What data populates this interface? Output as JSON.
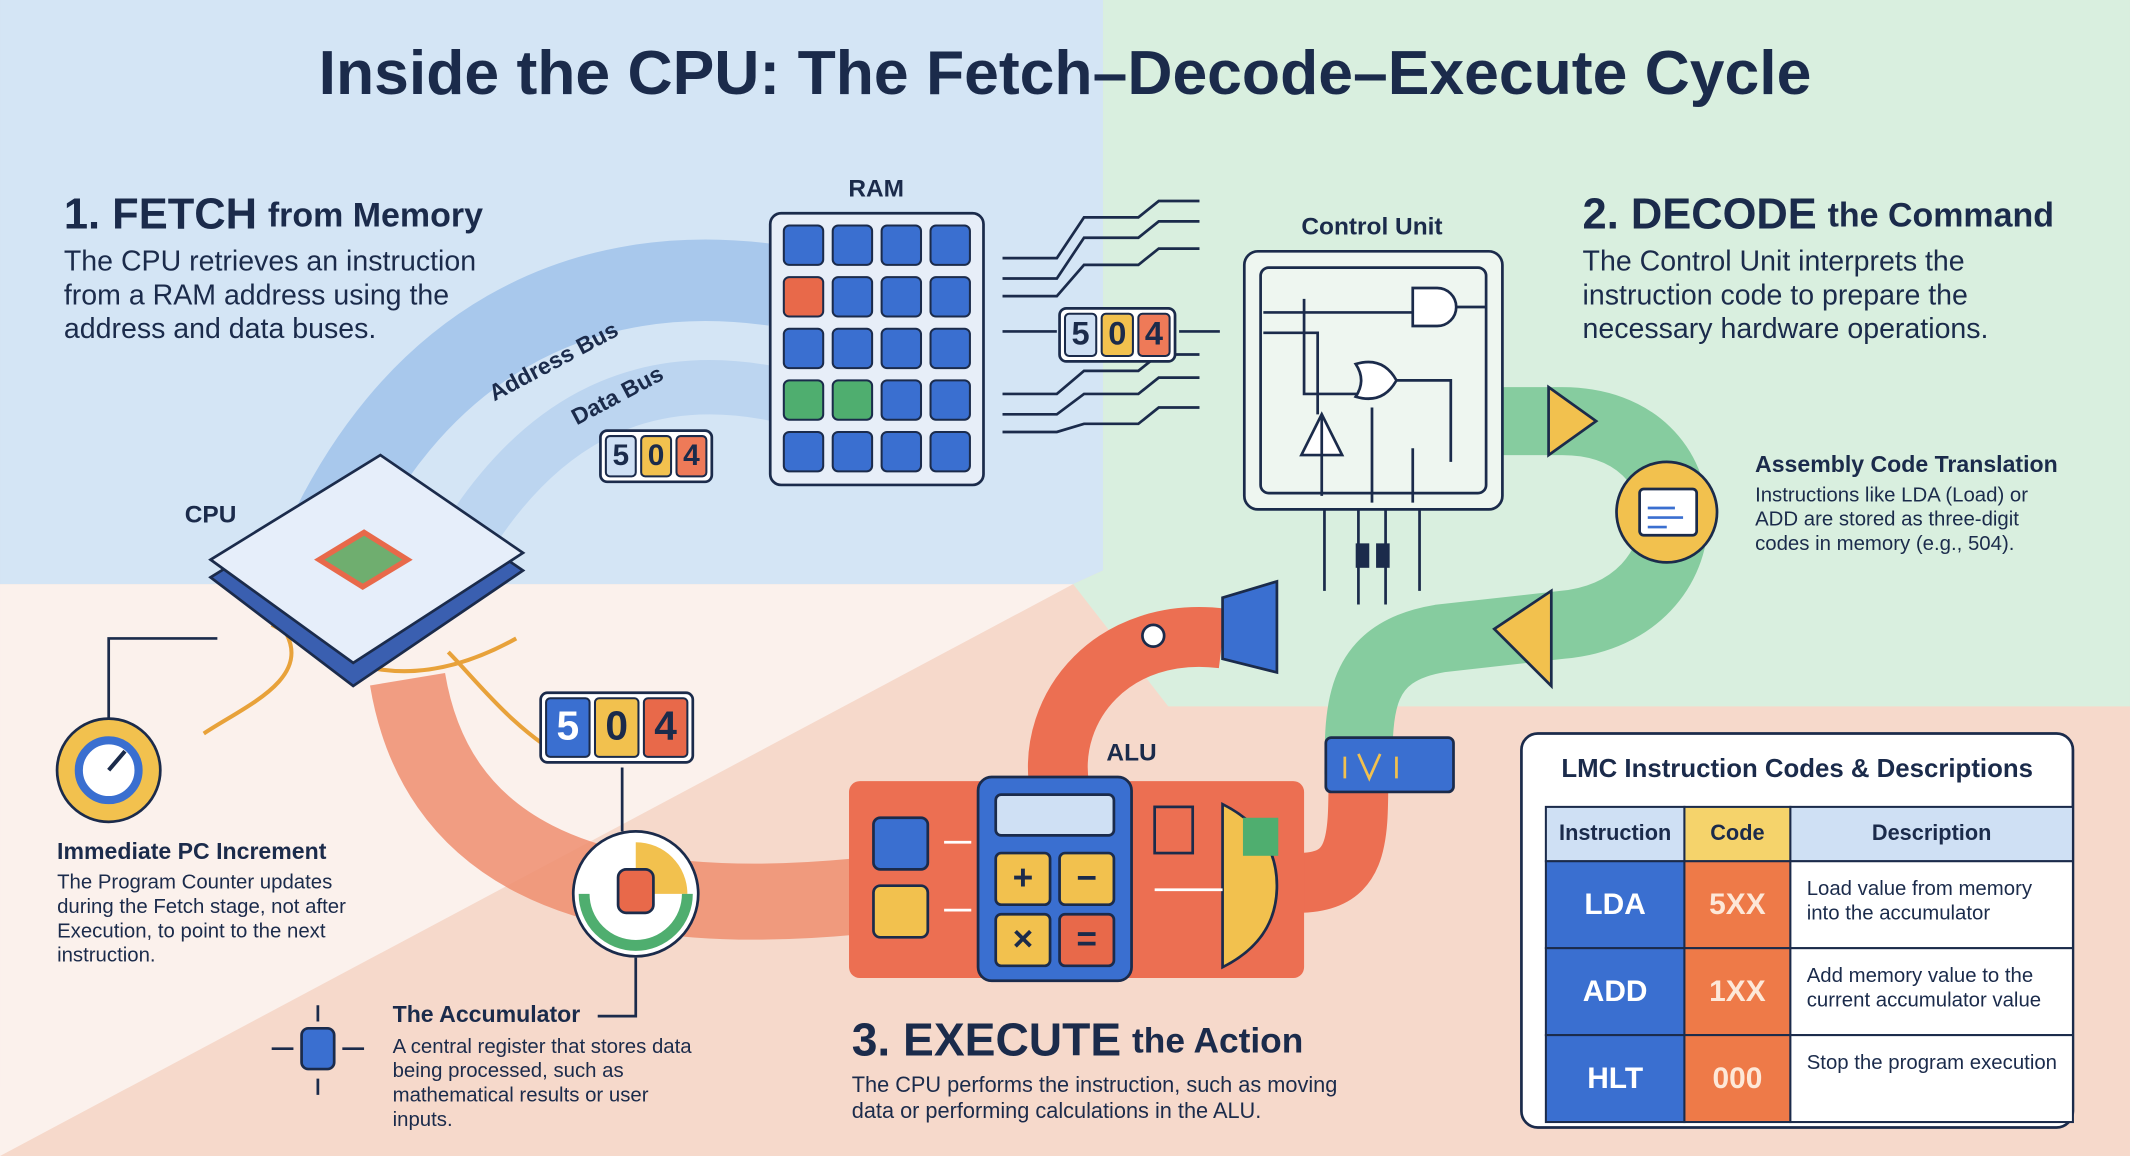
{
  "title": "Inside the CPU: The Fetch–Decode–Execute Cycle",
  "fetch": {
    "heading": "1. FETCH",
    "subheading": "from Memory",
    "body": "The CPU retrieves an instruction from a RAM address using the address and data buses."
  },
  "decode": {
    "heading": "2. DECODE",
    "subheading": "the Command",
    "body": "The Control Unit interprets the instruction code to prepare the necessary hardware operations."
  },
  "execute": {
    "heading": "3. EXECUTE",
    "subheading": "the Action",
    "body": "The CPU performs the instruction, such as moving data or performing calculations in the ALU."
  },
  "components": {
    "ram": "RAM",
    "control_unit": "Control Unit",
    "cpu": "CPU",
    "alu": "ALU",
    "address_bus": "Address Bus",
    "data_bus": "Data Bus"
  },
  "alu_keys": [
    "+",
    "−",
    "×",
    "="
  ],
  "registers": {
    "data_bus": [
      "5",
      "0",
      "4"
    ],
    "control_unit": [
      "5",
      "0",
      "4"
    ],
    "cpu": [
      "5",
      "0",
      "4"
    ]
  },
  "notes": {
    "pc_increment": {
      "title": "Immediate PC Increment",
      "body": "The Program Counter updates during the Fetch stage, not after Execution, to point to the next instruction."
    },
    "accumulator": {
      "title": "The Accumulator",
      "body": "A central register that stores data being processed, such as mathematical results or user inputs."
    },
    "assembly": {
      "title": "Assembly Code Translation",
      "body": "Instructions like LDA (Load) or ADD are stored as three-digit codes in memory (e.g., 504)."
    }
  },
  "table": {
    "title": "LMC Instruction Codes & Descriptions",
    "headers": [
      "Instruction",
      "Code",
      "Description"
    ],
    "rows": [
      [
        "LDA",
        "5XX",
        "Load value from memory into the accumulator"
      ],
      [
        "ADD",
        "1XX",
        "Add memory value to the current accumulator value"
      ],
      [
        "HLT",
        "000",
        "Stop the program execution"
      ]
    ]
  }
}
